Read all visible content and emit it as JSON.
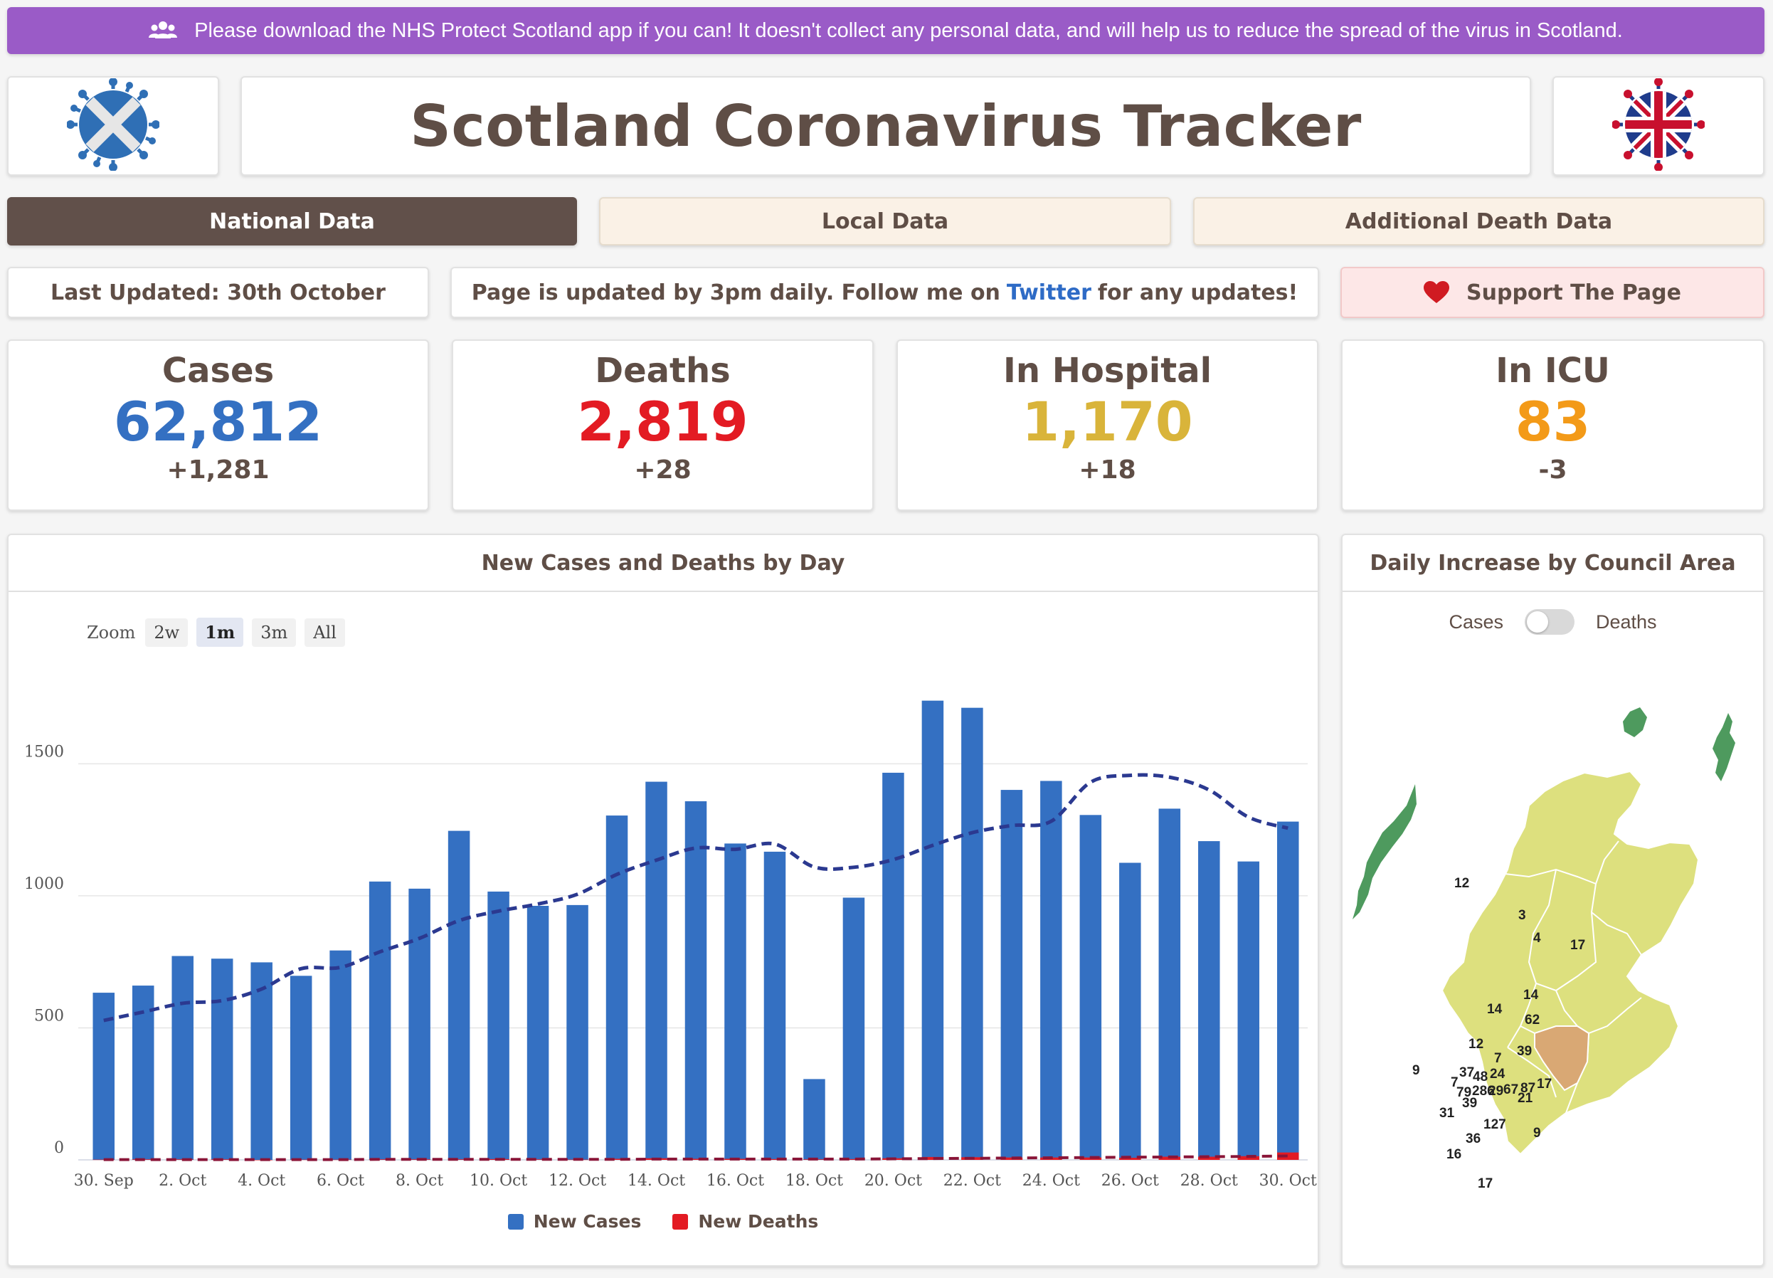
{
  "banner": {
    "text": "Please download the NHS Protect Scotland app if you can! It doesn't collect any personal data, and will help us to reduce the spread of the virus in Scotland.",
    "icon": "users-icon"
  },
  "header": {
    "title": "Scotland Coronavirus Tracker",
    "left_logo": "scotland-virus-logo",
    "right_logo": "uk-virus-logo"
  },
  "tabs": [
    {
      "label": "National Data",
      "active": true
    },
    {
      "label": "Local Data",
      "active": false
    },
    {
      "label": "Additional Death Data",
      "active": false
    }
  ],
  "info": {
    "last_updated": "Last Updated: 30th October",
    "update_prefix": "Page is updated by 3pm daily. Follow me on",
    "update_link": "Twitter",
    "update_suffix": "for any updates!",
    "support": "Support The Page"
  },
  "stats": {
    "cases": {
      "label": "Cases",
      "value": "62,812",
      "delta": "+1,281",
      "color": "#3470c2"
    },
    "deaths": {
      "label": "Deaths",
      "value": "2,819",
      "delta": "+28",
      "color": "#e31b23"
    },
    "hospital": {
      "label": "In Hospital",
      "value": "1,170",
      "delta": "+18",
      "color": "#d9b43a"
    },
    "icu": {
      "label": "In ICU",
      "value": "83",
      "delta": "-3",
      "color": "#f39a18"
    }
  },
  "chart_panel": {
    "title": "New Cases and Deaths by Day",
    "zoom_label": "Zoom",
    "zoom_options": [
      "2w",
      "1m",
      "3m",
      "All"
    ],
    "zoom_selected": "1m"
  },
  "chart_data": {
    "type": "bar",
    "title": "New Cases and Deaths by Day",
    "categories": [
      "30 Sep",
      "1 Oct",
      "2 Oct",
      "3 Oct",
      "4 Oct",
      "5 Oct",
      "6 Oct",
      "7 Oct",
      "8 Oct",
      "9 Oct",
      "10 Oct",
      "11 Oct",
      "12 Oct",
      "13 Oct",
      "14 Oct",
      "15 Oct",
      "16 Oct",
      "17 Oct",
      "18 Oct",
      "19 Oct",
      "20 Oct",
      "21 Oct",
      "22 Oct",
      "23 Oct",
      "24 Oct",
      "25 Oct",
      "26 Oct",
      "27 Oct",
      "28 Oct",
      "29 Oct",
      "30 Oct"
    ],
    "x_tick_labels": [
      "30. Sep",
      "2. Oct",
      "4. Oct",
      "6. Oct",
      "8. Oct",
      "10. Oct",
      "12. Oct",
      "14. Oct",
      "16. Oct",
      "18. Oct",
      "20. Oct",
      "22. Oct",
      "24. Oct",
      "26. Oct",
      "28. Oct",
      "30. Oct"
    ],
    "series": [
      {
        "name": "New Cases",
        "color": "#3470c2",
        "values": [
          633,
          660,
          772,
          762,
          748,
          697,
          793,
          1054,
          1027,
          1246,
          1016,
          962,
          965,
          1304,
          1432,
          1358,
          1198,
          1167,
          306,
          993,
          1466,
          1739,
          1712,
          1401,
          1435,
          1306,
          1125,
          1330,
          1207,
          1130,
          1281
        ]
      },
      {
        "name": "New Deaths",
        "color": "#e31b23",
        "values": [
          1,
          2,
          2,
          2,
          0,
          1,
          1,
          2,
          2,
          2,
          3,
          2,
          1,
          4,
          6,
          4,
          4,
          3,
          2,
          3,
          6,
          11,
          10,
          9,
          9,
          9,
          8,
          12,
          12,
          14,
          28
        ]
      }
    ],
    "average_cases": [
      528,
      560,
      593,
      603,
      647,
      724,
      729,
      788,
      839,
      906,
      942,
      969,
      1006,
      1081,
      1135,
      1181,
      1176,
      1196,
      1109,
      1108,
      1137,
      1191,
      1239,
      1266,
      1282,
      1430,
      1456,
      1449,
      1401,
      1298,
      1256
    ],
    "average_deaths": [
      1,
      1,
      1,
      1,
      1,
      1,
      1,
      2,
      2,
      2,
      2,
      2,
      2,
      2,
      3,
      3,
      3,
      3,
      3,
      3,
      4,
      5,
      6,
      7,
      8,
      9,
      10,
      11,
      12,
      13,
      15
    ],
    "y_ticks": [
      0,
      500,
      1000,
      1500
    ],
    "ylim": [
      0,
      1800
    ],
    "legend_position": "bottom"
  },
  "map_panel": {
    "title": "Daily Increase by Council Area",
    "toggle_left": "Cases",
    "toggle_right": "Deaths",
    "labels": [
      {
        "text": "12"
      },
      {
        "text": "3"
      },
      {
        "text": "4"
      },
      {
        "text": "17"
      },
      {
        "text": "14"
      },
      {
        "text": "14"
      },
      {
        "text": "62"
      },
      {
        "text": "12"
      },
      {
        "text": "7"
      },
      {
        "text": "39"
      },
      {
        "text": "9"
      },
      {
        "text": "37"
      },
      {
        "text": "48"
      },
      {
        "text": "24"
      },
      {
        "text": "7"
      },
      {
        "text": "79"
      },
      {
        "text": "286"
      },
      {
        "text": "29"
      },
      {
        "text": "67"
      },
      {
        "text": "87"
      },
      {
        "text": "17"
      },
      {
        "text": "21"
      },
      {
        "text": "39"
      },
      {
        "text": "31"
      },
      {
        "text": "127"
      },
      {
        "text": "36"
      },
      {
        "text": "9"
      },
      {
        "text": "16"
      },
      {
        "text": "17"
      }
    ],
    "colors": {
      "land": "#dde07e",
      "islands": "#4e9a5e",
      "high": "#d9a874",
      "border": "#ffffff"
    }
  }
}
